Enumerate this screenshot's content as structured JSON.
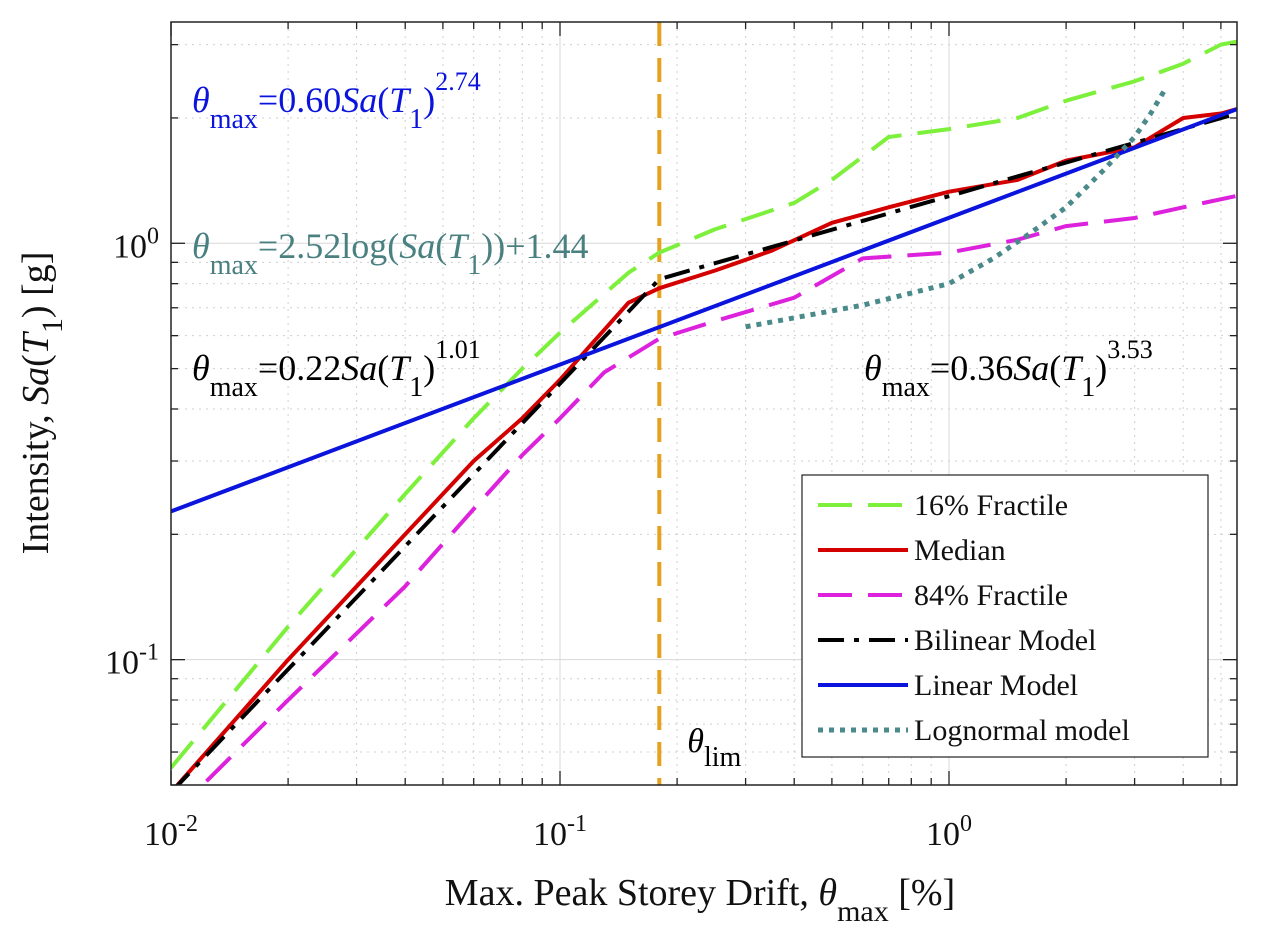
{
  "chart_data": {
    "type": "line",
    "xlabel": {
      "main": "Max. Peak Storey Drift, ",
      "symbol": "θ",
      "sub": "max",
      "unit": " [%]"
    },
    "ylabel": {
      "main": "Intensity, ",
      "func": "Sa",
      "open": "(",
      "var": "T",
      "sub": "1",
      "close": ") [g]"
    },
    "xscale": "log",
    "yscale": "log",
    "xlim": [
      0.01,
      5.5
    ],
    "ylim": [
      0.05,
      3.4
    ],
    "xticks": [
      {
        "value": 0.01,
        "base": "10",
        "exp": "-2"
      },
      {
        "value": 0.1,
        "base": "10",
        "exp": "-1"
      },
      {
        "value": 1,
        "base": "10",
        "exp": "0"
      }
    ],
    "yticks": [
      {
        "value": 0.1,
        "base": "10",
        "exp": "-1"
      },
      {
        "value": 1,
        "base": "10",
        "exp": "0"
      }
    ],
    "grid": true,
    "legend_position": "bottom-right",
    "series": [
      {
        "name": "16% Fractile",
        "color": "#7cf03a",
        "style": "dashed",
        "points": [
          [
            0.01,
            0.055
          ],
          [
            0.02,
            0.12
          ],
          [
            0.04,
            0.25
          ],
          [
            0.06,
            0.38
          ],
          [
            0.08,
            0.5
          ],
          [
            0.1,
            0.61
          ],
          [
            0.15,
            0.85
          ],
          [
            0.18,
            0.95
          ],
          [
            0.25,
            1.08
          ],
          [
            0.4,
            1.25
          ],
          [
            0.5,
            1.42
          ],
          [
            0.7,
            1.8
          ],
          [
            1,
            1.88
          ],
          [
            1.5,
            2.0
          ],
          [
            2,
            2.2
          ],
          [
            3,
            2.45
          ],
          [
            4,
            2.7
          ],
          [
            5,
            3.0
          ],
          [
            5.5,
            3.05
          ]
        ]
      },
      {
        "name": "Median",
        "color": "#d40000",
        "style": "solid",
        "points": [
          [
            0.01,
            0.048
          ],
          [
            0.02,
            0.1
          ],
          [
            0.04,
            0.2
          ],
          [
            0.06,
            0.3
          ],
          [
            0.08,
            0.38
          ],
          [
            0.1,
            0.47
          ],
          [
            0.12,
            0.57
          ],
          [
            0.15,
            0.72
          ],
          [
            0.18,
            0.78
          ],
          [
            0.25,
            0.86
          ],
          [
            0.35,
            0.96
          ],
          [
            0.5,
            1.12
          ],
          [
            0.7,
            1.22
          ],
          [
            1,
            1.33
          ],
          [
            1.5,
            1.42
          ],
          [
            2,
            1.58
          ],
          [
            3,
            1.7
          ],
          [
            4,
            2.0
          ],
          [
            5,
            2.05
          ],
          [
            5.5,
            2.1
          ]
        ]
      },
      {
        "name": "84% Fractile",
        "color": "#dd22dd",
        "style": "dashed",
        "points": [
          [
            0.01,
            0.042
          ],
          [
            0.02,
            0.08
          ],
          [
            0.04,
            0.15
          ],
          [
            0.06,
            0.23
          ],
          [
            0.08,
            0.31
          ],
          [
            0.1,
            0.38
          ],
          [
            0.13,
            0.49
          ],
          [
            0.18,
            0.59
          ],
          [
            0.25,
            0.65
          ],
          [
            0.4,
            0.74
          ],
          [
            0.6,
            0.92
          ],
          [
            1,
            0.95
          ],
          [
            1.5,
            1.02
          ],
          [
            2,
            1.1
          ],
          [
            3,
            1.15
          ],
          [
            4,
            1.22
          ],
          [
            5.5,
            1.3
          ]
        ]
      },
      {
        "name": "Bilinear Model",
        "color": "#000000",
        "style": "dashdot",
        "points": [
          [
            0.01,
            0.048
          ],
          [
            0.18,
            0.82
          ],
          [
            5.5,
            2.05
          ]
        ]
      },
      {
        "name": "Linear Model",
        "color": "#0a14dc",
        "style": "solid",
        "points": [
          [
            0.01,
            0.227
          ],
          [
            5.5,
            2.1
          ]
        ]
      },
      {
        "name": "Lognormal model",
        "color": "#4a8a8a",
        "style": "dotted",
        "points": [
          [
            0.3,
            0.63
          ],
          [
            0.6,
            0.71
          ],
          [
            1,
            0.8
          ],
          [
            1.3,
            0.92
          ],
          [
            1.6,
            1.05
          ],
          [
            2,
            1.22
          ],
          [
            2.5,
            1.5
          ],
          [
            3,
            1.8
          ],
          [
            3.3,
            2.05
          ],
          [
            3.6,
            2.35
          ]
        ]
      }
    ],
    "threshold": {
      "x": 0.18,
      "color": "#e8a020",
      "style": "dashed",
      "symbol": "θ",
      "sub": "lim"
    },
    "annotations": [
      {
        "id": "eq-linear",
        "color": "#0a14dc",
        "sym": "θ",
        "sub": "max",
        "pre": "=0.60",
        "fn": "Sa",
        "open": "(",
        "var": "T",
        "vsub": "1",
        "close": ")",
        "sup": "2.74"
      },
      {
        "id": "eq-log",
        "color": "#4a8080",
        "sym": "θ",
        "sub": "max",
        "pre": "=2.52log(",
        "fn": "Sa",
        "open": "(",
        "var": "T",
        "vsub": "1",
        "close": "))+1.44",
        "sup": ""
      },
      {
        "id": "eq-bilinear",
        "color": "#000000",
        "sym": "θ",
        "sub": "max",
        "pre": "=0.22",
        "fn": "Sa",
        "open": "(",
        "var": "T",
        "vsub": "1",
        "close": ")",
        "sup": "1.01"
      },
      {
        "id": "eq-lognormal",
        "color": "#000000",
        "sym": "θ",
        "sub": "max",
        "pre": "=0.36",
        "fn": "Sa",
        "open": "(",
        "var": "T",
        "vsub": "1",
        "close": ")",
        "sup": "3.53"
      }
    ]
  }
}
